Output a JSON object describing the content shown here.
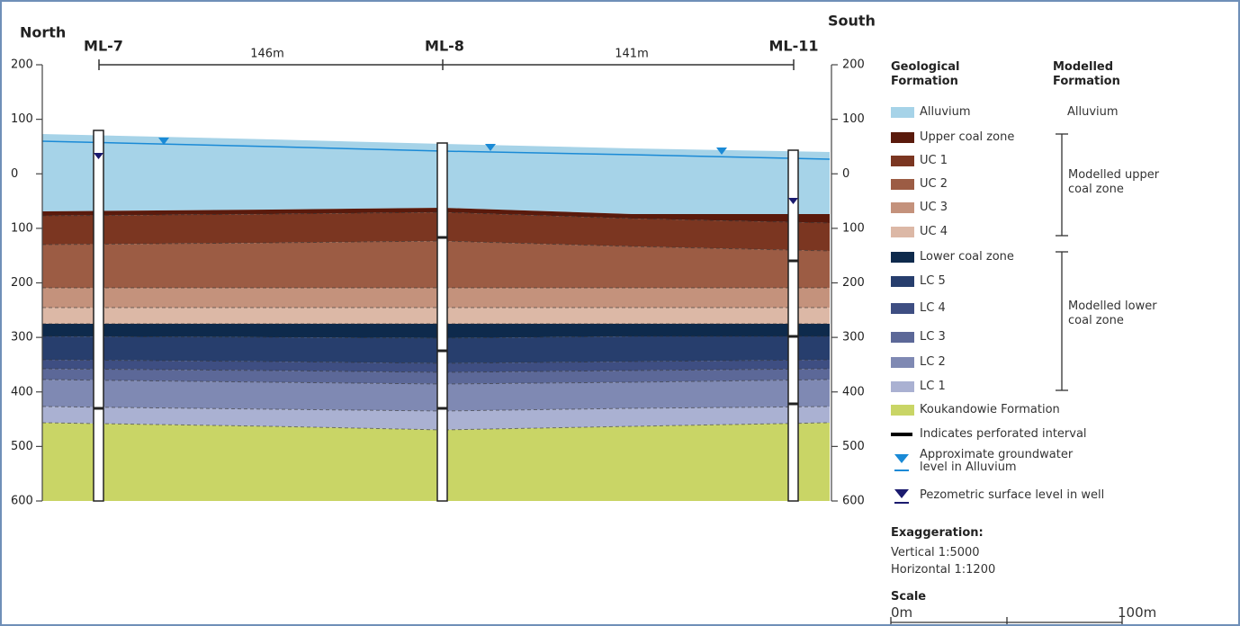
{
  "header": {
    "north": "North",
    "south": "South"
  },
  "wells": [
    {
      "label": "ML-7"
    },
    {
      "label": "ML-8"
    },
    {
      "label": "ML-11"
    }
  ],
  "distances": [
    "146m",
    "141m"
  ],
  "axis_labels": [
    "200",
    "100",
    "0",
    "100",
    "200",
    "300",
    "400",
    "500",
    "600"
  ],
  "legend": {
    "geological_heading": "Geological Formation",
    "modelled_heading": "Modelled Formation",
    "items": [
      {
        "label": "Alluvium",
        "color": "#a6d3e8"
      },
      {
        "label": "Upper coal zone",
        "color": "#5a1a0c"
      },
      {
        "label": "UC 1",
        "color": "#7b3621"
      },
      {
        "label": "UC 2",
        "color": "#9c5c44"
      },
      {
        "label": "UC 3",
        "color": "#c4927c"
      },
      {
        "label": "UC 4",
        "color": "#dcb8a6"
      },
      {
        "label": "Lower coal zone",
        "color": "#0e2a4c"
      },
      {
        "label": "LC 5",
        "color": "#273e6d"
      },
      {
        "label": "LC 4",
        "color": "#3e4e82"
      },
      {
        "label": "LC 3",
        "color": "#5c6898"
      },
      {
        "label": "LC 2",
        "color": "#7f89b3"
      },
      {
        "label": "LC 1",
        "color": "#aab1d2"
      },
      {
        "label": "Koukandowie Formation",
        "color": "#c9d566"
      },
      {
        "label": "Indicates perforated interval"
      },
      {
        "label": "Approximate groundwater level in Alluvium"
      },
      {
        "label": "Pezometric surface level in well"
      }
    ],
    "modelled": [
      "Alluvium",
      "Modelled upper coal zone",
      "Modelled lower coal zone"
    ]
  },
  "exaggeration": {
    "title": "Exaggeration:",
    "vertical": "Vertical 1:5000",
    "horizontal": "Horizontal 1:1200"
  },
  "scale": {
    "title": "Scale",
    "start": "0m",
    "end": "100m"
  }
}
